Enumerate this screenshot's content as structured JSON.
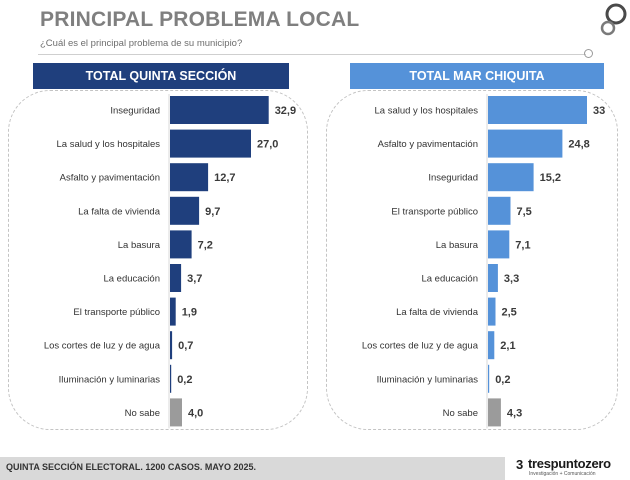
{
  "header": {
    "title": "PRINCIPAL PROBLEMA LOCAL",
    "subtitle": "¿Cuál es el principal problema de su municipio?"
  },
  "footer": {
    "note": "QUINTA SECCIÓN ELECTORAL. 1200 CASOS. MAYO 2025.",
    "brand": "trespuntozero",
    "brand_mark": "3",
    "brand_tagline": "Investigación + Comunicación"
  },
  "colors": {
    "left_bar": "#1f3f7d",
    "right_bar": "#5592d9",
    "no_sabe_bar": "#9b9b9b",
    "left_header": "#1f3f7d",
    "right_header": "#5592d9"
  },
  "chart_data": [
    {
      "type": "bar",
      "orientation": "horizontal",
      "title": "TOTAL QUINTA SECCIÓN",
      "categories": [
        "Inseguridad",
        "La salud y los hospitales",
        "Asfalto y pavimentación",
        "La falta de vivienda",
        "La basura",
        "La educación",
        "El transporte público",
        "Los cortes de luz y de agua",
        "Iluminación y luminarias",
        "No sabe"
      ],
      "values": [
        32.9,
        27.0,
        12.7,
        9.7,
        7.2,
        3.7,
        1.9,
        0.7,
        0.2,
        4.0
      ],
      "value_labels": [
        "32,9",
        "27,0",
        "12,7",
        "9,7",
        "7,2",
        "3,7",
        "1,9",
        "0,7",
        "0,2",
        "4,0"
      ],
      "grid": false
    },
    {
      "type": "bar",
      "orientation": "horizontal",
      "title": "TOTAL MAR CHIQUITA",
      "categories": [
        "La salud y los hospitales",
        "Asfalto y pavimentación",
        "Inseguridad",
        "El transporte público",
        "La basura",
        "La educación",
        "La falta de vivienda",
        "Los cortes de luz y de agua",
        "Iluminación y luminarias",
        "No sabe"
      ],
      "values": [
        33,
        24.8,
        15.2,
        7.5,
        7.1,
        3.3,
        2.5,
        2.1,
        0.2,
        4.3
      ],
      "value_labels": [
        "33",
        "24,8",
        "15,2",
        "7,5",
        "7,1",
        "3,3",
        "2,5",
        "2,1",
        "0,2",
        "4,3"
      ],
      "grid": false
    }
  ]
}
